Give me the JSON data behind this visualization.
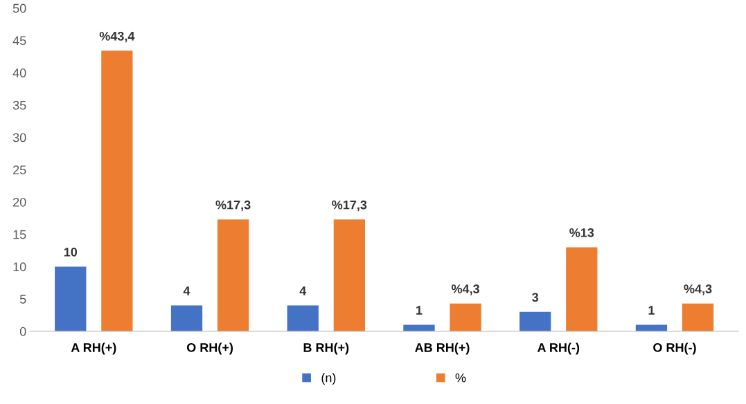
{
  "chart_data": {
    "type": "bar",
    "categories": [
      "A RH(+)",
      "O RH(+)",
      "B RH(+)",
      "AB RH(+)",
      "A RH(-)",
      "O RH(-)"
    ],
    "series": [
      {
        "name": "(n)",
        "color": "#4472c4",
        "values": [
          10,
          4,
          4,
          1,
          3,
          1
        ],
        "value_labels": [
          "10",
          "4",
          "4",
          "1",
          "3",
          "1"
        ]
      },
      {
        "name": "%",
        "color": "#ed7d31",
        "values": [
          43.4,
          17.3,
          17.3,
          4.3,
          13,
          4.3
        ],
        "value_labels": [
          "%43,4",
          "%17,3",
          "%17,3",
          "%4,3",
          "%13",
          "%4,3"
        ]
      }
    ],
    "ylim": [
      0,
      50
    ],
    "yticks": [
      0,
      5,
      10,
      15,
      20,
      25,
      30,
      35,
      40,
      45,
      50
    ],
    "grid": false,
    "legend": "bottom"
  }
}
